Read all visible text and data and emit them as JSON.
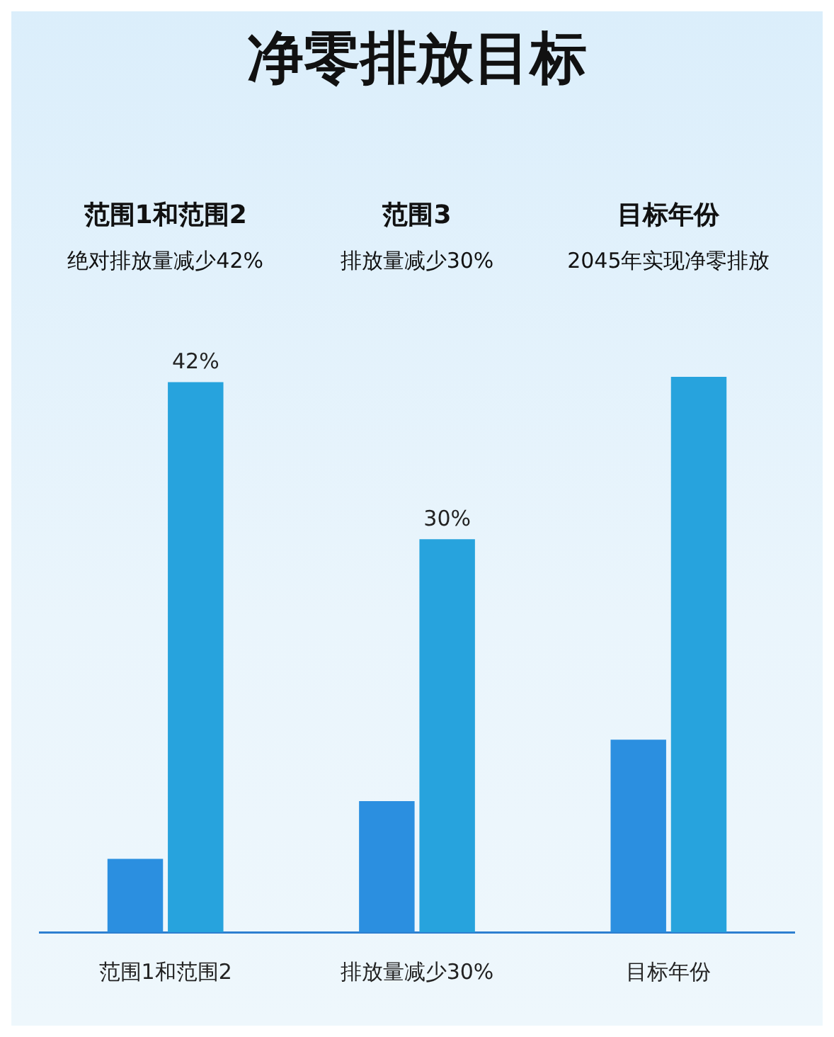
{
  "chart_data": {
    "type": "bar",
    "title": "净零排放目标",
    "categories": [
      "范围1和范围2",
      "排放量减少30%",
      "目标年份"
    ],
    "series": [
      {
        "color": "#2b8fe0",
        "values": [
          5.6,
          10,
          14.7
        ]
      },
      {
        "color": "#27a3dd",
        "values": [
          42,
          30,
          42.4
        ],
        "value_labels": [
          "42%",
          "30%",
          null
        ]
      }
    ],
    "annotations": [
      "范围1和范围2",
      "绝对排放量减少42%",
      "范围3",
      "排放量减少30%",
      "目标年份",
      "2045年实现净零排放"
    ],
    "tick_labels": "x",
    "legend": false
  }
}
